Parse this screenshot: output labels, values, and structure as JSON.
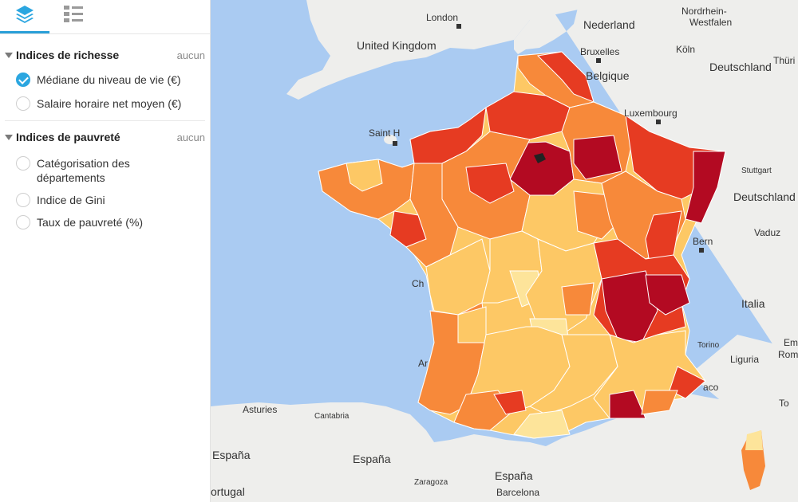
{
  "tabs": [
    {
      "icon": "layers-icon",
      "active": true
    },
    {
      "icon": "legend-list-icon",
      "active": false
    }
  ],
  "sections": [
    {
      "title": "Indices de richesse",
      "clear": "aucun",
      "options": [
        {
          "label": "Médiane du niveau de vie (€)",
          "selected": true
        },
        {
          "label": "Salaire horaire net moyen (€)",
          "selected": false
        }
      ]
    },
    {
      "title": "Indices de pauvreté",
      "clear": "aucun",
      "options": [
        {
          "label": "Catégorisation des départements",
          "selected": false
        },
        {
          "label": "Indice de Gini",
          "selected": false
        },
        {
          "label": "Taux de pauvreté (%)",
          "selected": false
        }
      ]
    }
  ],
  "map": {
    "colors": {
      "sea": "#aacbf2",
      "land": "#eeeeec",
      "class1": "#fde49a",
      "class2": "#fdc865",
      "class3": "#f7893a",
      "class4": "#e63b22",
      "class5": "#b30a22"
    },
    "labels": {
      "london": "London",
      "nederland": "Nederland",
      "nordrhein": "Nordrhein-",
      "westfalen": "Westfalen",
      "uk": "United Kingdom",
      "bruxelles": "Bruxelles",
      "koln": "Köln",
      "belgique": "Belgique",
      "deutschland1": "Deutschland",
      "luxembourg": "Luxembourg",
      "saint": "Saint H",
      "stuttgart": "Stuttgart",
      "deutschland2": "Deutschland",
      "bern": "Bern",
      "vaduz": "Vaduz",
      "italia": "Italia",
      "torino": "Torino",
      "liguria": "Liguria",
      "asturies": "Asturies",
      "cantabria": "Cantabria",
      "espana1": "España",
      "espana2": "España",
      "espana3": "España",
      "zaragoza": "Zaragoza",
      "barcelona": "Barcelona",
      "portugal": "ortugal",
      "thur": "Thüri",
      "rom": "Rom",
      "emi": "Em",
      "chi": "Ch",
      "ar": "Ar",
      "aco": "aco",
      "to": "To"
    }
  }
}
